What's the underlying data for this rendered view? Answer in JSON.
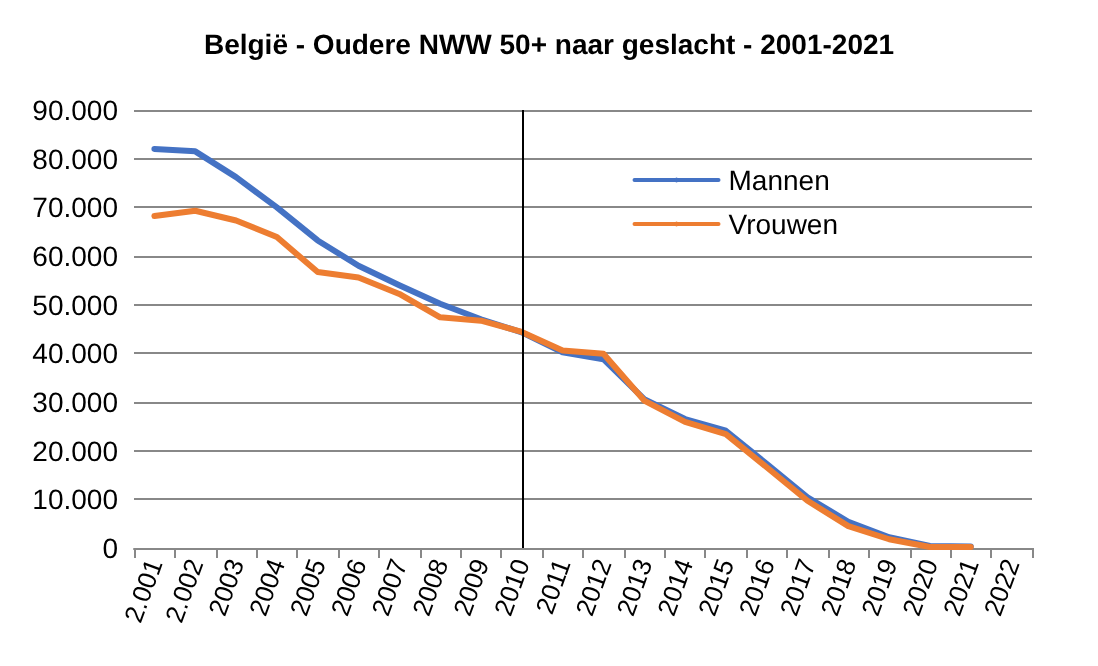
{
  "chart_data": {
    "type": "line",
    "title": "België - Oudere NWW 50+ naar geslacht - 2001-2021",
    "categories": [
      "2.001",
      "2.002",
      "2003",
      "2004",
      "2005",
      "2006",
      "2007",
      "2008",
      "2009",
      "2010",
      "2011",
      "2012",
      "2013",
      "2014",
      "2015",
      "2016",
      "2017",
      "2018",
      "2019",
      "2020",
      "2021",
      "2022"
    ],
    "series": [
      {
        "name": "Mannen",
        "color": "#4472c4",
        "values": [
          82000,
          81500,
          76200,
          70000,
          63200,
          58000,
          54000,
          50200,
          47000,
          44300,
          40200,
          38800,
          30600,
          26500,
          24100,
          17300,
          10400,
          5400,
          2200,
          400,
          300,
          null
        ]
      },
      {
        "name": "Vrouwen",
        "color": "#ed7d31",
        "values": [
          68200,
          69300,
          67300,
          63900,
          56700,
          55600,
          52200,
          47400,
          46700,
          44400,
          40600,
          39900,
          30300,
          25900,
          23400,
          16600,
          9700,
          4500,
          1800,
          200,
          200,
          null
        ]
      }
    ],
    "ylim": [
      0,
      90000
    ],
    "yticks": [
      {
        "value": 0,
        "label": "0"
      },
      {
        "value": 10000,
        "label": "10.000"
      },
      {
        "value": 20000,
        "label": "20.000"
      },
      {
        "value": 30000,
        "label": "30.000"
      },
      {
        "value": 40000,
        "label": "40.000"
      },
      {
        "value": 50000,
        "label": "50.000"
      },
      {
        "value": 60000,
        "label": "60.000"
      },
      {
        "value": 70000,
        "label": "70.000"
      },
      {
        "value": 80000,
        "label": "80.000"
      },
      {
        "value": 90000,
        "label": "90.000"
      }
    ],
    "ref_lines": [
      {
        "axis": "x",
        "value": "2010",
        "color": "#000000"
      }
    ],
    "grid": "y",
    "legend": "top right",
    "marker": "none",
    "line_style": "solid"
  }
}
